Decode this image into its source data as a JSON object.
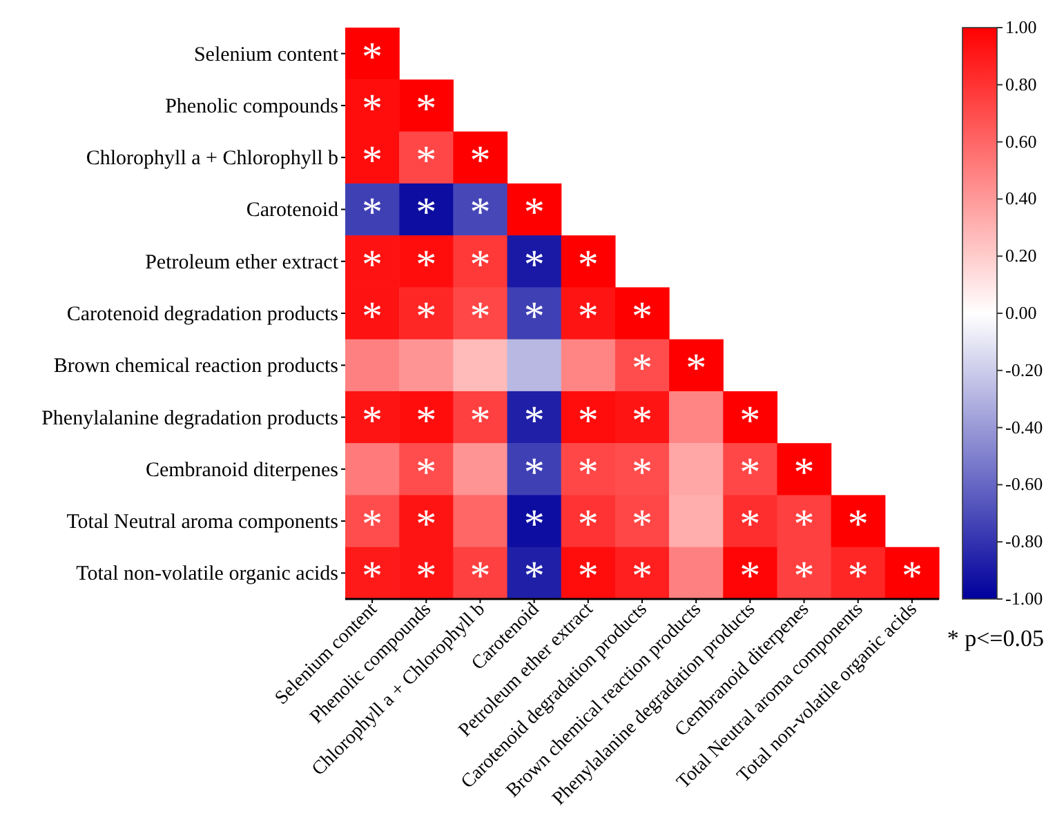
{
  "chart_data": {
    "type": "heatmap",
    "categories": [
      "Selenium content",
      "Phenolic compounds",
      "Chlorophyll a + Chlorophyll b",
      "Carotenoid",
      "Petroleum ether extract",
      "Carotenoid degradation products",
      "Brown chemical reaction products",
      "Phenylalanine degradation products",
      "Cembranoid diterpenes",
      "Total Neutral aroma components",
      "Total non-volatile organic acids"
    ],
    "y_categories": [
      "Selenium content",
      "Phenolic compounds",
      "Chlorophyll a + Chlorophyll b",
      "Carotenoid",
      "Petroleum ether extract",
      "Carotenoid degradation products",
      "Brown chemical reaction products",
      "Phenylalanine degradation products",
      "Cembranoid diterpenes",
      "Total Neutral aroma components",
      "Total non-volatile organic acids"
    ],
    "cells": [
      [
        1,
        null,
        null,
        null,
        null,
        null,
        null,
        null,
        null,
        null,
        null
      ],
      [
        0.95,
        1,
        null,
        null,
        null,
        null,
        null,
        null,
        null,
        null,
        null
      ],
      [
        0.95,
        0.72,
        1,
        null,
        null,
        null,
        null,
        null,
        null,
        null,
        null
      ],
      [
        -0.75,
        -0.95,
        -0.72,
        1,
        null,
        null,
        null,
        null,
        null,
        null,
        null
      ],
      [
        0.93,
        0.95,
        0.78,
        -0.9,
        1,
        null,
        null,
        null,
        null,
        null,
        null
      ],
      [
        0.93,
        0.85,
        0.72,
        -0.75,
        0.92,
        1,
        null,
        null,
        null,
        null,
        null
      ],
      [
        0.5,
        0.42,
        0.27,
        -0.28,
        0.48,
        0.7,
        1,
        null,
        null,
        null,
        null
      ],
      [
        0.92,
        0.95,
        0.75,
        -0.88,
        0.95,
        0.92,
        0.48,
        1,
        null,
        null,
        null
      ],
      [
        0.52,
        0.7,
        0.42,
        -0.75,
        0.72,
        0.7,
        0.35,
        0.72,
        1,
        null,
        null
      ],
      [
        0.7,
        0.92,
        0.6,
        -0.95,
        0.8,
        0.72,
        0.32,
        0.82,
        0.75,
        1,
        null
      ],
      [
        0.9,
        0.92,
        0.75,
        -0.88,
        0.95,
        0.88,
        0.5,
        0.98,
        0.75,
        0.85,
        1
      ]
    ],
    "cell_labels": [
      [
        "*",
        null,
        null,
        null,
        null,
        null,
        null,
        null,
        null,
        null,
        null
      ],
      [
        "*",
        "*",
        null,
        null,
        null,
        null,
        null,
        null,
        null,
        null,
        null
      ],
      [
        "*",
        "*",
        "*",
        null,
        null,
        null,
        null,
        null,
        null,
        null,
        null
      ],
      [
        "*",
        "*",
        "*",
        "*",
        null,
        null,
        null,
        null,
        null,
        null,
        null
      ],
      [
        "*",
        "*",
        "*",
        "*",
        "*",
        null,
        null,
        null,
        null,
        null,
        null
      ],
      [
        "*",
        "*",
        "*",
        "*",
        "*",
        "*",
        null,
        null,
        null,
        null,
        null
      ],
      [
        null,
        null,
        null,
        null,
        null,
        "*",
        "*",
        null,
        null,
        null,
        null
      ],
      [
        "*",
        "*",
        "*",
        "*",
        "*",
        "*",
        null,
        "*",
        null,
        null,
        null
      ],
      [
        null,
        "*",
        null,
        "*",
        "*",
        "*",
        null,
        "*",
        "*",
        null,
        null
      ],
      [
        "*",
        "*",
        null,
        "*",
        "*",
        "*",
        null,
        "*",
        "*",
        "*",
        null
      ],
      [
        "*",
        "*",
        "*",
        "*",
        "*",
        "*",
        null,
        "*",
        "*",
        "*",
        "*"
      ]
    ],
    "clim": [
      -1,
      1
    ],
    "cticks": [
      {
        "value": 1,
        "label": "1.00"
      },
      {
        "value": 0.8,
        "label": "0.80"
      },
      {
        "value": 0.6,
        "label": "0.60"
      },
      {
        "value": 0.4,
        "label": "0.40"
      },
      {
        "value": 0.2,
        "label": "0.20"
      },
      {
        "value": 0,
        "label": "0.00"
      },
      {
        "value": -0.2,
        "label": "-0.20"
      },
      {
        "value": -0.4,
        "label": "-0.40"
      },
      {
        "value": -0.6,
        "label": "-0.60"
      },
      {
        "value": -0.8,
        "label": "-0.80"
      },
      {
        "value": -1,
        "label": "-1.00"
      }
    ],
    "annotations": [
      "* p<=0.05"
    ]
  }
}
